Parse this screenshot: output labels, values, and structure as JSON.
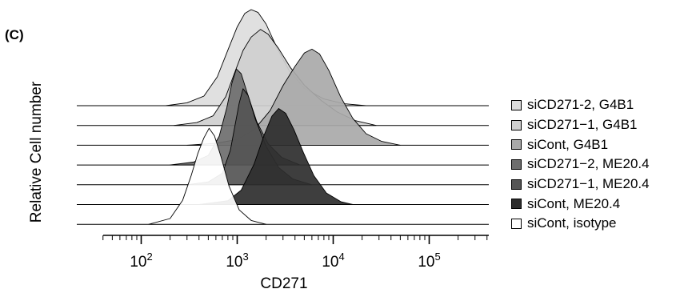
{
  "panel_label": "(C)",
  "chart_data": {
    "type": "area",
    "title": "",
    "xlabel": "CD271",
    "ylabel": "Relative Cell number",
    "x_scale": "log10",
    "xlim": [
      30,
      450000
    ],
    "xtick_labels": [
      {
        "value": 100,
        "base": "10",
        "exp": "2"
      },
      {
        "value": 1000,
        "base": "10",
        "exp": "3"
      },
      {
        "value": 10000,
        "base": "10",
        "exp": "4"
      },
      {
        "value": 100000,
        "base": "10",
        "exp": "5"
      }
    ],
    "legend_position": "right",
    "series": [
      {
        "name": "siCD271-2, G4B1",
        "color": "#dddddd",
        "points": [
          [
            180,
            0
          ],
          [
            300,
            0.03
          ],
          [
            450,
            0.1
          ],
          [
            620,
            0.3
          ],
          [
            800,
            0.58
          ],
          [
            1000,
            0.82
          ],
          [
            1200,
            0.96
          ],
          [
            1400,
            1.0
          ],
          [
            1650,
            0.97
          ],
          [
            2000,
            0.85
          ],
          [
            2600,
            0.6
          ],
          [
            3500,
            0.36
          ],
          [
            5000,
            0.18
          ],
          [
            8000,
            0.07
          ],
          [
            13000,
            0.02
          ],
          [
            22000,
            0
          ]
        ]
      },
      {
        "name": "siCD271−1, G4B1",
        "color": "#cfcfcf",
        "points": [
          [
            220,
            0
          ],
          [
            380,
            0.03
          ],
          [
            560,
            0.1
          ],
          [
            760,
            0.3
          ],
          [
            950,
            0.56
          ],
          [
            1150,
            0.78
          ],
          [
            1400,
            0.92
          ],
          [
            1750,
            1.0
          ],
          [
            2100,
            0.95
          ],
          [
            2700,
            0.8
          ],
          [
            3600,
            0.6
          ],
          [
            5000,
            0.42
          ],
          [
            7500,
            0.26
          ],
          [
            11000,
            0.14
          ],
          [
            17000,
            0.05
          ],
          [
            28000,
            0
          ]
        ]
      },
      {
        "name": "siCont, G4B1",
        "color": "#a9a9a9",
        "points": [
          [
            300,
            0
          ],
          [
            600,
            0.02
          ],
          [
            1000,
            0.06
          ],
          [
            1500,
            0.16
          ],
          [
            2200,
            0.36
          ],
          [
            3000,
            0.62
          ],
          [
            4000,
            0.82
          ],
          [
            5000,
            0.96
          ],
          [
            6000,
            1.0
          ],
          [
            7200,
            0.95
          ],
          [
            9000,
            0.78
          ],
          [
            12000,
            0.5
          ],
          [
            16000,
            0.28
          ],
          [
            22000,
            0.12
          ],
          [
            32000,
            0.04
          ],
          [
            50000,
            0
          ]
        ]
      },
      {
        "name": "siCD271−2, ME20.4",
        "color": "#6e6e6e",
        "points": [
          [
            200,
            0
          ],
          [
            350,
            0.03
          ],
          [
            500,
            0.1
          ],
          [
            650,
            0.3
          ],
          [
            780,
            0.6
          ],
          [
            880,
            0.85
          ],
          [
            980,
            1.0
          ],
          [
            1100,
            0.95
          ],
          [
            1300,
            0.72
          ],
          [
            1600,
            0.45
          ],
          [
            2100,
            0.22
          ],
          [
            2900,
            0.08
          ],
          [
            4500,
            0
          ]
        ]
      },
      {
        "name": "siCD271−1, ME20.4",
        "color": "#555555",
        "points": [
          [
            300,
            0
          ],
          [
            500,
            0.03
          ],
          [
            700,
            0.12
          ],
          [
            850,
            0.36
          ],
          [
            950,
            0.62
          ],
          [
            1050,
            0.85
          ],
          [
            1150,
            1.0
          ],
          [
            1300,
            0.93
          ],
          [
            1550,
            0.68
          ],
          [
            2000,
            0.4
          ],
          [
            2700,
            0.18
          ],
          [
            3800,
            0.06
          ],
          [
            6000,
            0
          ]
        ]
      },
      {
        "name": "siCont, ME20.4",
        "color": "#2e2e2e",
        "points": [
          [
            400,
            0
          ],
          [
            800,
            0.04
          ],
          [
            1100,
            0.15
          ],
          [
            1500,
            0.42
          ],
          [
            1900,
            0.72
          ],
          [
            2300,
            0.92
          ],
          [
            2700,
            1.0
          ],
          [
            3200,
            0.95
          ],
          [
            3900,
            0.78
          ],
          [
            4900,
            0.54
          ],
          [
            6300,
            0.3
          ],
          [
            8500,
            0.12
          ],
          [
            12000,
            0.03
          ],
          [
            16000,
            0
          ]
        ]
      },
      {
        "name": "siCont, isotype",
        "color": "#ffffff",
        "points": [
          [
            120,
            0
          ],
          [
            200,
            0.06
          ],
          [
            270,
            0.25
          ],
          [
            330,
            0.5
          ],
          [
            390,
            0.74
          ],
          [
            450,
            0.9
          ],
          [
            510,
            1.0
          ],
          [
            580,
            0.92
          ],
          [
            680,
            0.7
          ],
          [
            820,
            0.4
          ],
          [
            1050,
            0.15
          ],
          [
            1400,
            0.04
          ],
          [
            2000,
            0
          ]
        ]
      }
    ]
  }
}
